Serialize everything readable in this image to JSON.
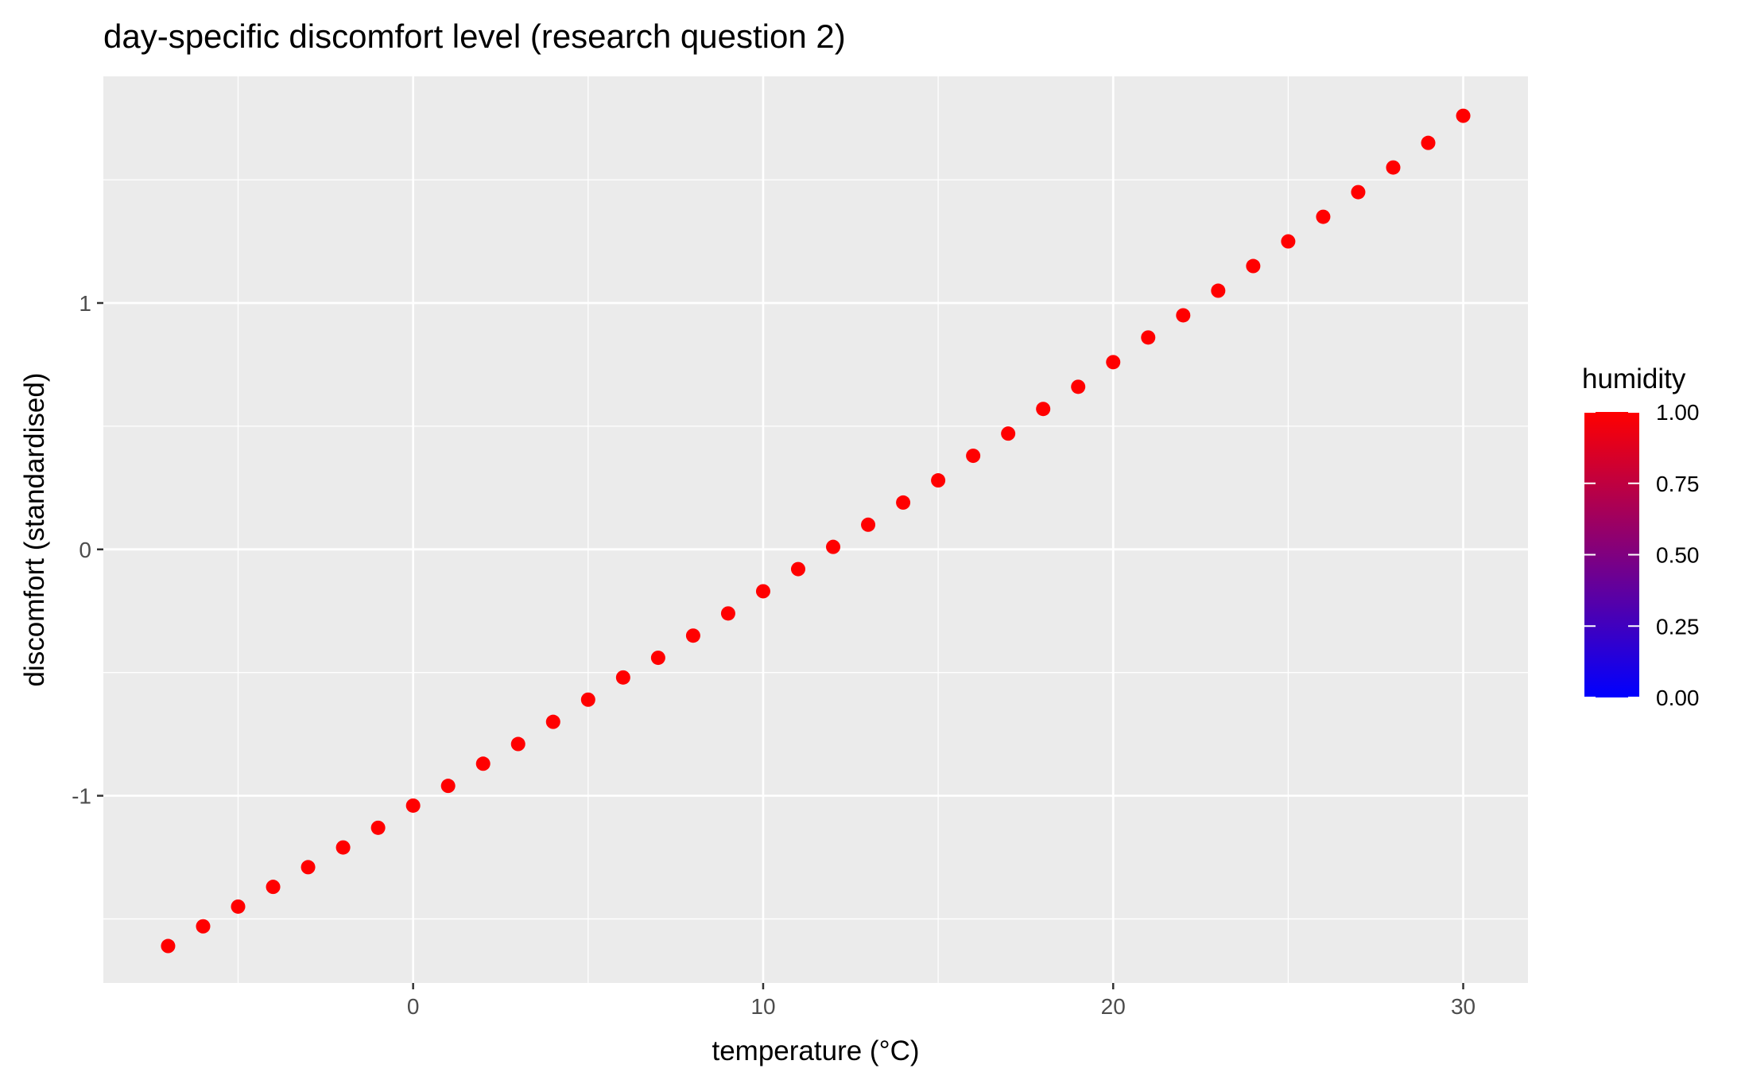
{
  "chart_data": {
    "type": "scatter",
    "title": "day-specific discomfort level (research question 2)",
    "xlabel": "temperature (°C)",
    "ylabel": "discomfort (standardised)",
    "xlim": [
      -8.85,
      31.85
    ],
    "ylim": [
      -1.76,
      1.92
    ],
    "x_ticks": [
      0,
      10,
      20,
      30
    ],
    "x_tick_labels": [
      "0",
      "10",
      "20",
      "30"
    ],
    "x_minor_ticks": [
      -5,
      5,
      15,
      25
    ],
    "y_ticks": [
      -1,
      0,
      1
    ],
    "y_tick_labels": [
      "-1",
      "0",
      "1"
    ],
    "y_minor_ticks": [
      -1.5,
      -0.5,
      0.5,
      1.5
    ],
    "grid": true,
    "point_color": "#FF0000",
    "panel_background": "#EBEBEB",
    "grid_color": "#FFFFFF",
    "series": [
      {
        "x": [
          -7,
          -6,
          -5,
          -4,
          -3,
          -2,
          -1,
          0,
          1,
          2,
          3,
          4,
          5,
          6,
          7,
          8,
          9,
          10,
          11,
          12,
          13,
          14,
          15,
          16,
          17,
          18,
          19,
          20,
          21,
          22,
          23,
          24,
          25,
          26,
          27,
          28,
          29,
          30
        ],
        "y": [
          -1.61,
          -1.53,
          -1.45,
          -1.37,
          -1.29,
          -1.21,
          -1.13,
          -1.04,
          -0.96,
          -0.87,
          -0.79,
          -0.7,
          -0.61,
          -0.52,
          -0.44,
          -0.35,
          -0.26,
          -0.17,
          -0.08,
          0.01,
          0.1,
          0.19,
          0.28,
          0.38,
          0.47,
          0.57,
          0.66,
          0.76,
          0.86,
          0.95,
          1.05,
          1.15,
          1.25,
          1.35,
          1.45,
          1.55,
          1.65,
          1.76
        ],
        "humidity": 1.0
      }
    ],
    "legend": {
      "title": "humidity",
      "placement": "right",
      "breaks": [
        "1.00",
        "0.75",
        "0.50",
        "0.25",
        "0.00"
      ],
      "break_values": [
        1.0,
        0.75,
        0.5,
        0.25,
        0.0
      ],
      "low_color": "#0000FF",
      "high_color": "#FF0000"
    }
  }
}
